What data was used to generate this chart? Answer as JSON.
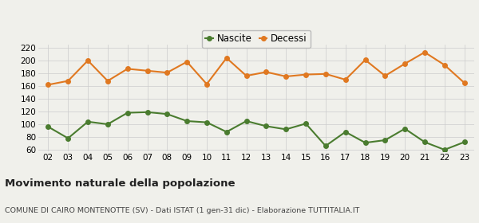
{
  "years": [
    "02",
    "03",
    "04",
    "05",
    "06",
    "07",
    "08",
    "09",
    "10",
    "11",
    "12",
    "13",
    "14",
    "15",
    "16",
    "17",
    "18",
    "19",
    "20",
    "21",
    "22",
    "23"
  ],
  "nascite": [
    96,
    78,
    104,
    100,
    118,
    119,
    116,
    105,
    103,
    88,
    105,
    97,
    92,
    101,
    66,
    88,
    71,
    75,
    93,
    72,
    60,
    72
  ],
  "decessi": [
    162,
    168,
    200,
    168,
    187,
    184,
    181,
    198,
    163,
    204,
    176,
    182,
    175,
    178,
    179,
    170,
    201,
    176,
    195,
    213,
    193,
    165
  ],
  "nascite_color": "#4a7c2f",
  "decessi_color": "#e07820",
  "background_color": "#f0f0eb",
  "grid_color": "#cccccc",
  "ylim": [
    57,
    225
  ],
  "yticks": [
    60,
    80,
    100,
    120,
    140,
    160,
    180,
    200,
    220
  ],
  "title": "Movimento naturale della popolazione",
  "subtitle": "COMUNE DI CAIRO MONTENOTTE (SV) - Dati ISTAT (1 gen-31 dic) - Elaborazione TUTTITALIA.IT",
  "legend_nascite": "Nascite",
  "legend_decessi": "Decessi",
  "title_fontsize": 9.5,
  "subtitle_fontsize": 6.8,
  "legend_fontsize": 8.5,
  "axis_fontsize": 7.5,
  "marker_size": 4,
  "line_width": 1.5
}
